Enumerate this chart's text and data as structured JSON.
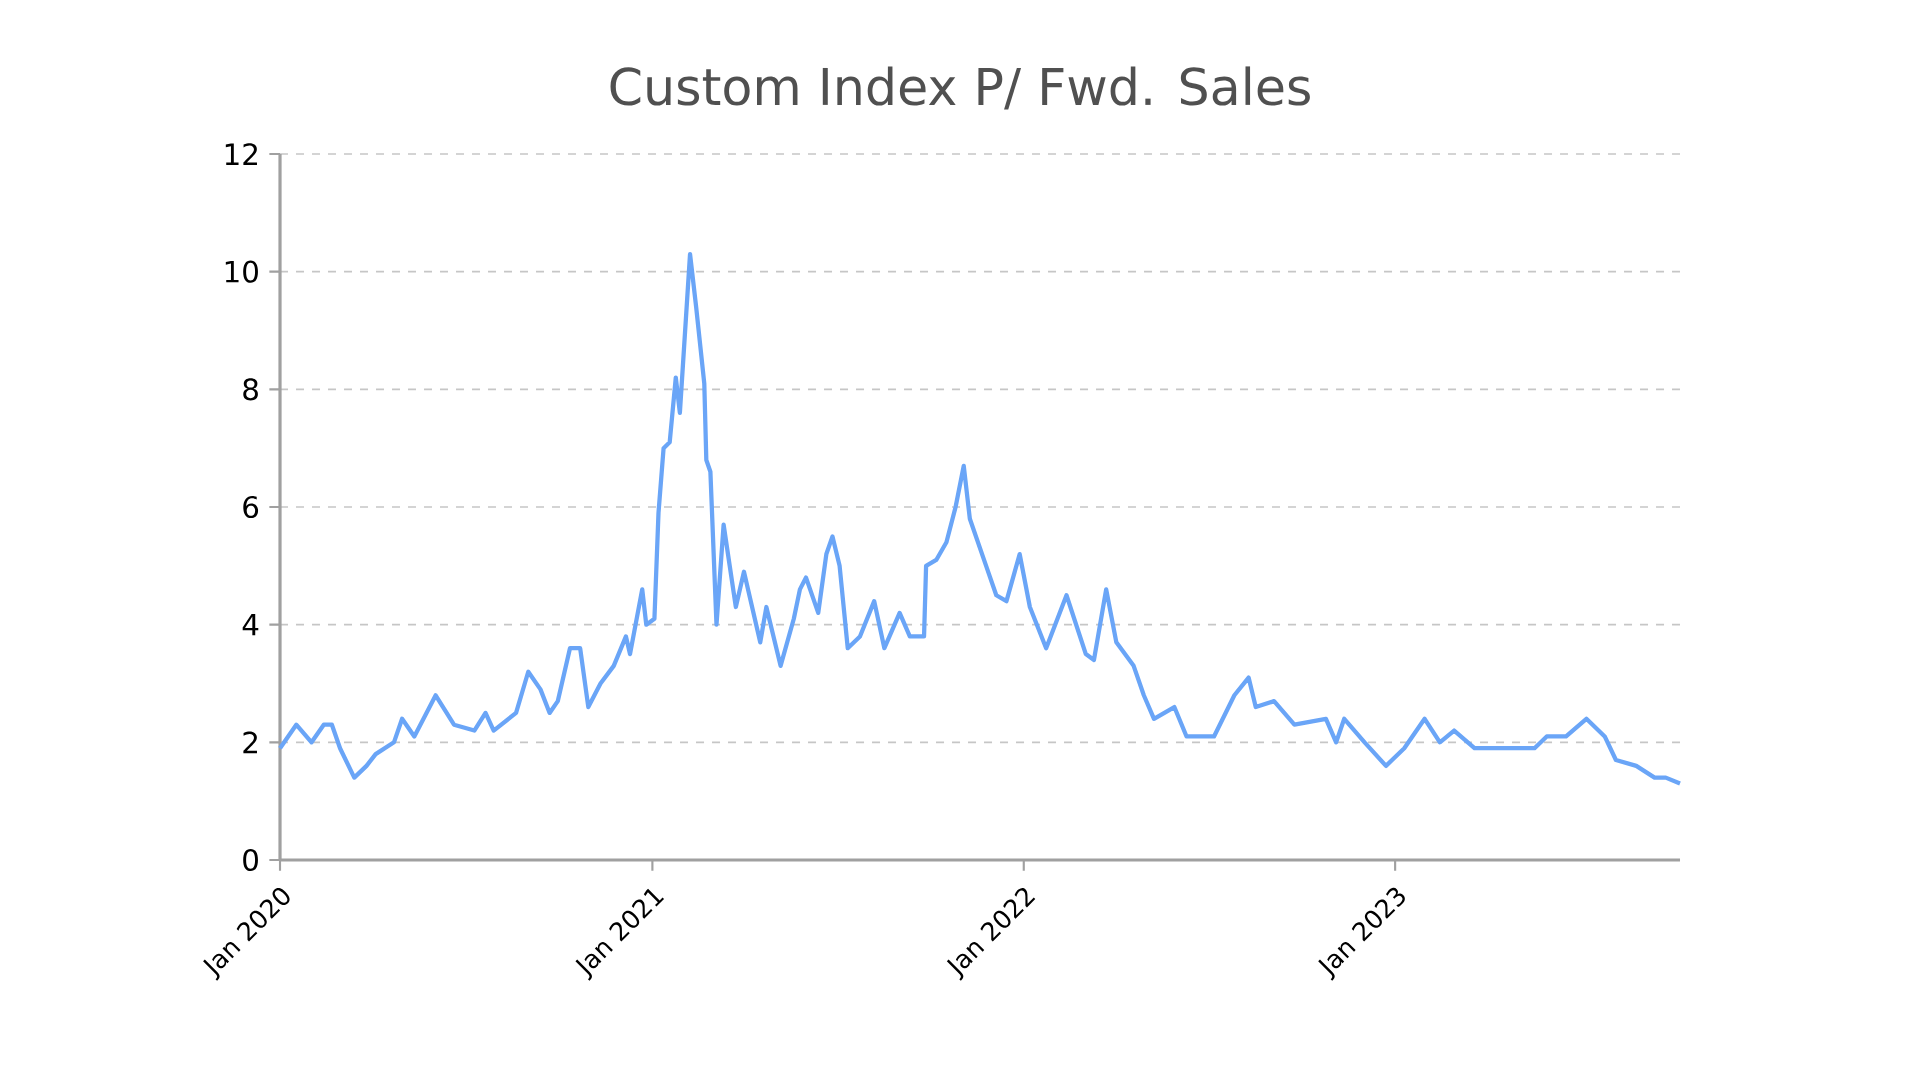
{
  "chart_data": {
    "type": "line",
    "title": "Custom Index P/ Fwd. Sales",
    "x": [
      "2020-01-01",
      "2020-01-17",
      "2020-02-01",
      "2020-02-13",
      "2020-02-21",
      "2020-02-29",
      "2020-03-14",
      "2020-03-26",
      "2020-04-04",
      "2020-04-22",
      "2020-04-30",
      "2020-05-12",
      "2020-06-02",
      "2020-06-20",
      "2020-07-10",
      "2020-07-21",
      "2020-07-29",
      "2020-08-20",
      "2020-09-01",
      "2020-09-13",
      "2020-09-22",
      "2020-09-30",
      "2020-10-12",
      "2020-10-22",
      "2020-10-30",
      "2020-11-11",
      "2020-11-24",
      "2020-12-06",
      "2020-12-10",
      "2020-12-22",
      "2020-12-26",
      "2021-01-03",
      "2021-01-07",
      "2021-01-12",
      "2021-01-18",
      "2021-01-24",
      "2021-01-28",
      "2021-02-07",
      "2021-02-13",
      "2021-02-21",
      "2021-02-23",
      "2021-02-27",
      "2021-03-05",
      "2021-03-12",
      "2021-03-18",
      "2021-03-24",
      "2021-04-01",
      "2021-04-17",
      "2021-04-23",
      "2021-05-07",
      "2021-05-20",
      "2021-05-26",
      "2021-06-01",
      "2021-06-13",
      "2021-06-21",
      "2021-06-27",
      "2021-07-04",
      "2021-07-12",
      "2021-07-24",
      "2021-08-07",
      "2021-08-17",
      "2021-09-01",
      "2021-09-11",
      "2021-09-25",
      "2021-09-27",
      "2021-10-07",
      "2021-10-17",
      "2021-10-26",
      "2021-11-03",
      "2021-11-09",
      "2021-11-25",
      "2021-12-05",
      "2021-12-15",
      "2021-12-28",
      "2022-01-07",
      "2022-01-23",
      "2022-02-12",
      "2022-03-03",
      "2022-03-11",
      "2022-03-23",
      "2022-04-02",
      "2022-04-19",
      "2022-04-29",
      "2022-05-09",
      "2022-05-29",
      "2022-06-10",
      "2022-07-07",
      "2022-07-27",
      "2022-08-10",
      "2022-08-17",
      "2022-09-04",
      "2022-09-24",
      "2022-10-25",
      "2022-11-04",
      "2022-11-12",
      "2022-12-02",
      "2022-12-23",
      "2023-01-10",
      "2023-01-30",
      "2023-02-14",
      "2023-02-28",
      "2023-03-20",
      "2023-04-20",
      "2023-05-18",
      "2023-05-30",
      "2023-06-18",
      "2023-07-08",
      "2023-07-26",
      "2023-08-06",
      "2023-08-26",
      "2023-09-13",
      "2023-09-24",
      "2023-10-08"
    ],
    "series": [
      {
        "color": "#6aa5f7",
        "values": [
          1.9,
          2.3,
          2.0,
          2.3,
          2.3,
          1.9,
          1.4,
          1.6,
          1.8,
          2.0,
          2.4,
          2.1,
          2.8,
          2.3,
          2.2,
          2.5,
          2.2,
          2.5,
          3.2,
          2.9,
          2.5,
          2.7,
          3.6,
          3.6,
          2.6,
          3.0,
          3.3,
          3.8,
          3.5,
          4.6,
          4.0,
          4.1,
          5.9,
          7.0,
          7.1,
          8.2,
          7.6,
          10.3,
          9.4,
          8.1,
          6.8,
          6.6,
          4.0,
          5.7,
          5.0,
          4.3,
          4.9,
          3.7,
          4.3,
          3.3,
          4.1,
          4.6,
          4.8,
          4.2,
          5.2,
          5.5,
          5.0,
          3.6,
          3.8,
          4.4,
          3.6,
          4.2,
          3.8,
          3.8,
          5.0,
          5.1,
          5.4,
          6.0,
          6.7,
          5.8,
          5.0,
          4.5,
          4.4,
          5.2,
          4.3,
          3.6,
          4.5,
          3.5,
          3.4,
          4.6,
          3.7,
          3.3,
          2.8,
          2.4,
          2.6,
          2.1,
          2.1,
          2.8,
          3.1,
          2.6,
          2.7,
          2.3,
          2.4,
          2.0,
          2.4,
          2.0,
          1.6,
          1.9,
          2.4,
          2.0,
          2.2,
          1.9,
          1.9,
          1.9,
          2.1,
          2.1,
          2.4,
          2.1,
          1.7,
          1.6,
          1.4,
          1.4,
          1.3
        ]
      }
    ],
    "xlim": [
      "2020-01-01",
      "2023-10-08"
    ],
    "xticks": [
      {
        "value": "2020-01-01",
        "label": "Jan 2020"
      },
      {
        "value": "2021-01-01",
        "label": "Jan 2021"
      },
      {
        "value": "2022-01-01",
        "label": "Jan 2022"
      },
      {
        "value": "2023-01-01",
        "label": "Jan 2023"
      }
    ],
    "ylim": [
      0,
      12
    ],
    "yticks": [
      0,
      2,
      4,
      6,
      8,
      10,
      12
    ],
    "grid": "y",
    "line_style": "solid"
  }
}
